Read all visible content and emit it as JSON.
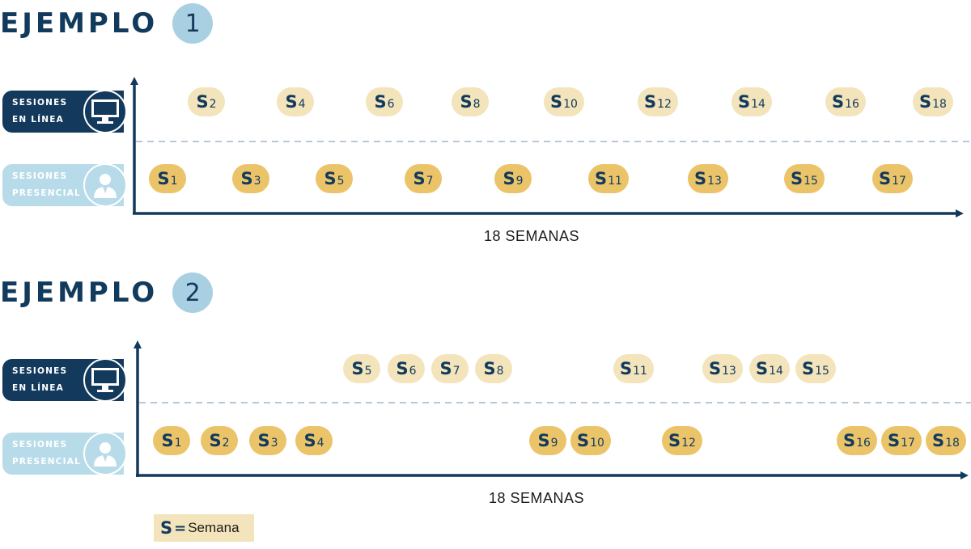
{
  "examples": [
    {
      "title": "EJEMPLO",
      "number": "1",
      "online_label": [
        "SESIONES",
        "EN LÍNEA"
      ],
      "presencial_label": [
        "SESIONES",
        "PRESENCIAL"
      ],
      "xlabel": "18 SEMANAS",
      "online_weeks": [
        "2",
        "4",
        "6",
        "8",
        "10",
        "12",
        "14",
        "16",
        "18"
      ],
      "presencial_weeks": [
        "1",
        "3",
        "5",
        "7",
        "9",
        "11",
        "13",
        "15",
        "17"
      ]
    },
    {
      "title": "EJEMPLO",
      "number": "2",
      "online_label": [
        "SESIONES",
        "EN LÍNEA"
      ],
      "presencial_label": [
        "SESIONES",
        "PRESENCIAL"
      ],
      "xlabel": "18 SEMANAS",
      "online_weeks": [
        "5",
        "6",
        "7",
        "8",
        "11",
        "13",
        "14",
        "15"
      ],
      "presencial_weeks": [
        "1",
        "2",
        "3",
        "4",
        "9",
        "10",
        "12",
        "16",
        "17",
        "18"
      ]
    }
  ],
  "week_letter": "S",
  "legend": {
    "symbol": "S",
    "equals": "=",
    "text": "Semana"
  },
  "colors": {
    "navy": "#123a5c",
    "online_chip": "#f3e4bc",
    "presencial_chip": "#ebc46a",
    "light_blue": "#b8dbe9"
  },
  "icons": {
    "online": "monitor-icon",
    "presencial": "person-icon"
  }
}
